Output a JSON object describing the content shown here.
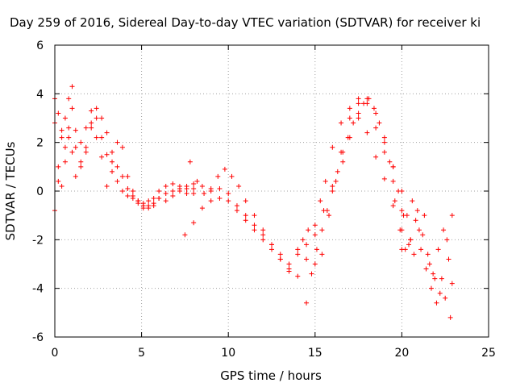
{
  "chart_data": {
    "type": "scatter",
    "title": "Day 259 of 2016, Sidereal Day-to-day VTEC variation (SDTVAR) for receiver ki",
    "xlabel": "GPS time / hours",
    "ylabel": "SDTVAR / TECUs",
    "xlim": [
      0,
      25
    ],
    "ylim": [
      -6,
      6
    ],
    "x_ticks": [
      0,
      5,
      10,
      15,
      20,
      25
    ],
    "y_ticks": [
      -6,
      -4,
      -2,
      0,
      2,
      4,
      6
    ],
    "x_tick_labels": [
      "0",
      "5",
      "10",
      "15",
      "20",
      "25"
    ],
    "y_tick_labels": [
      "-6",
      "-4",
      "-2",
      "0",
      "2",
      "4",
      "6"
    ],
    "grid": true,
    "marker": "plus",
    "color": "#ff0000",
    "series": [
      {
        "x": [
          0.0,
          0.2,
          0.4,
          0.6,
          0.8,
          1.0,
          1.2,
          1.5,
          1.8,
          2.1,
          2.4,
          2.7,
          3.0,
          3.3,
          3.6,
          3.9,
          4.2,
          4.5,
          4.8,
          5.1,
          5.4,
          5.7,
          6.0,
          6.4,
          6.8,
          7.2,
          7.6,
          8.0
        ],
        "y": [
          3.8,
          3.2,
          2.2,
          1.8,
          2.6,
          3.4,
          2.5,
          2.0,
          2.6,
          3.3,
          3.0,
          2.2,
          1.5,
          0.8,
          0.4,
          0.0,
          -0.2,
          -0.3,
          -0.5,
          -0.6,
          -0.4,
          -0.5,
          -0.3,
          -0.1,
          0.0,
          0.2,
          0.1,
          -0.1
        ]
      },
      {
        "x": [
          0.0,
          0.2,
          0.4,
          0.6,
          0.8,
          1.0,
          1.2,
          1.5,
          1.8,
          2.1,
          2.4,
          2.7,
          3.0,
          3.3,
          3.6,
          3.9,
          4.2,
          4.5,
          4.8,
          5.1,
          5.4,
          5.7,
          6.0,
          6.4,
          6.8,
          7.2,
          7.6,
          8.0
        ],
        "y": [
          2.8,
          1.0,
          0.2,
          1.2,
          3.8,
          4.3,
          1.8,
          1.2,
          1.6,
          2.8,
          3.4,
          3.0,
          2.4,
          1.6,
          1.0,
          0.6,
          0.1,
          -0.2,
          -0.4,
          -0.7,
          -0.6,
          -0.3,
          0.0,
          0.2,
          0.3,
          0.1,
          0.2,
          0.3
        ]
      },
      {
        "x": [
          0.0,
          0.2,
          0.4,
          0.6,
          0.8,
          1.0,
          1.2,
          1.5,
          1.8,
          2.1,
          2.4,
          2.7,
          3.0,
          3.3,
          3.6,
          3.9,
          4.2,
          4.5,
          4.8,
          5.1,
          5.4,
          5.7,
          6.0,
          6.4,
          6.8,
          7.2,
          7.6,
          8.0
        ],
        "y": [
          -0.8,
          0.4,
          2.5,
          3.0,
          2.2,
          1.6,
          0.6,
          1.0,
          1.8,
          2.6,
          2.2,
          1.4,
          0.2,
          1.2,
          2.0,
          1.8,
          0.6,
          0.0,
          -0.4,
          -0.5,
          -0.7,
          -0.6,
          -0.3,
          -0.4,
          -0.2,
          0.0,
          -0.1,
          0.1
        ]
      },
      {
        "x": [
          7.5,
          8.0,
          8.5,
          9.0,
          9.5,
          10.0,
          10.5,
          11.0,
          11.5,
          12.0,
          12.5,
          13.0,
          13.5,
          14.0,
          14.5,
          15.0,
          15.3,
          15.6,
          16.0,
          16.5,
          17.0,
          17.5,
          18.0,
          18.5,
          19.0,
          19.5,
          20.0
        ],
        "y": [
          -1.8,
          -1.3,
          -0.7,
          -0.4,
          -0.3,
          -0.4,
          -0.8,
          -1.2,
          -1.6,
          -2.0,
          -2.4,
          -2.8,
          -3.3,
          -2.6,
          -2.2,
          -1.4,
          -0.4,
          0.4,
          1.8,
          2.8,
          3.4,
          3.0,
          2.4,
          1.4,
          0.5,
          -0.6,
          -1.6
        ]
      },
      {
        "x": [
          7.8,
          8.2,
          8.6,
          9.0,
          9.4,
          9.8,
          10.2,
          10.6,
          11.0,
          11.5,
          12.0,
          12.5,
          13.0,
          13.5,
          14.0,
          14.5,
          15.0,
          15.5,
          16.0,
          16.5,
          17.0,
          17.5,
          18.0,
          18.5,
          19.0,
          19.5,
          20.0
        ],
        "y": [
          1.2,
          0.4,
          -0.1,
          0.1,
          0.6,
          0.9,
          0.6,
          0.2,
          -0.4,
          -1.0,
          -1.6,
          -2.2,
          -2.8,
          -3.2,
          -3.5,
          -2.8,
          -1.8,
          -0.8,
          0.2,
          1.6,
          3.0,
          3.8,
          3.8,
          3.2,
          2.2,
          1.0,
          0.0
        ]
      },
      {
        "x": [
          8.5,
          9.0,
          9.5,
          10.0,
          10.5,
          11.0,
          11.5,
          12.0,
          12.5,
          13.0,
          13.5,
          14.0,
          14.3,
          14.6,
          15.0,
          15.4,
          15.8,
          16.2,
          16.6,
          17.0,
          17.5,
          18.0,
          18.5,
          19.0,
          19.5,
          20.0,
          20.5
        ],
        "y": [
          0.2,
          0.0,
          0.1,
          -0.1,
          -0.6,
          -1.0,
          -1.4,
          -1.8,
          -2.2,
          -2.6,
          -3.0,
          -2.4,
          -2.0,
          -1.6,
          -3.0,
          -2.6,
          -1.0,
          0.4,
          1.2,
          2.2,
          3.6,
          3.6,
          2.6,
          1.6,
          0.4,
          -0.8,
          -2.0
        ]
      },
      {
        "x": [
          14.5,
          14.8,
          15.1,
          15.4,
          15.7,
          16.0,
          16.3,
          16.6,
          16.9,
          17.2,
          17.5,
          17.8,
          18.1,
          18.4,
          18.7,
          19.0,
          19.3
        ],
        "y": [
          -4.6,
          -3.4,
          -2.4,
          -1.6,
          -0.8,
          0.0,
          0.8,
          1.6,
          2.2,
          2.8,
          3.2,
          3.6,
          3.8,
          3.4,
          2.8,
          2.0,
          1.2
        ]
      },
      {
        "x": [
          19.5,
          19.8,
          20.1,
          20.4,
          20.7,
          21.0,
          21.3,
          21.6,
          21.9,
          22.2,
          22.5,
          22.8
        ],
        "y": [
          1.0,
          0.0,
          -1.0,
          -2.2,
          -2.6,
          -1.6,
          -1.0,
          -3.0,
          -3.6,
          -4.2,
          -4.4,
          -5.2
        ]
      },
      {
        "x": [
          19.6,
          19.9,
          20.2,
          20.5,
          20.8,
          21.1,
          21.4,
          21.7,
          22.0,
          22.3,
          22.6,
          22.9
        ],
        "y": [
          -0.4,
          -1.6,
          -2.4,
          -2.0,
          -1.2,
          -2.4,
          -3.2,
          -4.0,
          -4.6,
          -3.6,
          -2.0,
          -1.0
        ]
      },
      {
        "x": [
          20.0,
          20.3,
          20.6,
          20.9,
          21.2,
          21.5,
          21.8,
          22.1,
          22.4,
          22.7,
          22.9
        ],
        "y": [
          -2.4,
          -1.0,
          -0.4,
          -0.8,
          -1.8,
          -2.6,
          -3.4,
          -2.4,
          -1.6,
          -2.8,
          -3.8
        ]
      }
    ]
  }
}
